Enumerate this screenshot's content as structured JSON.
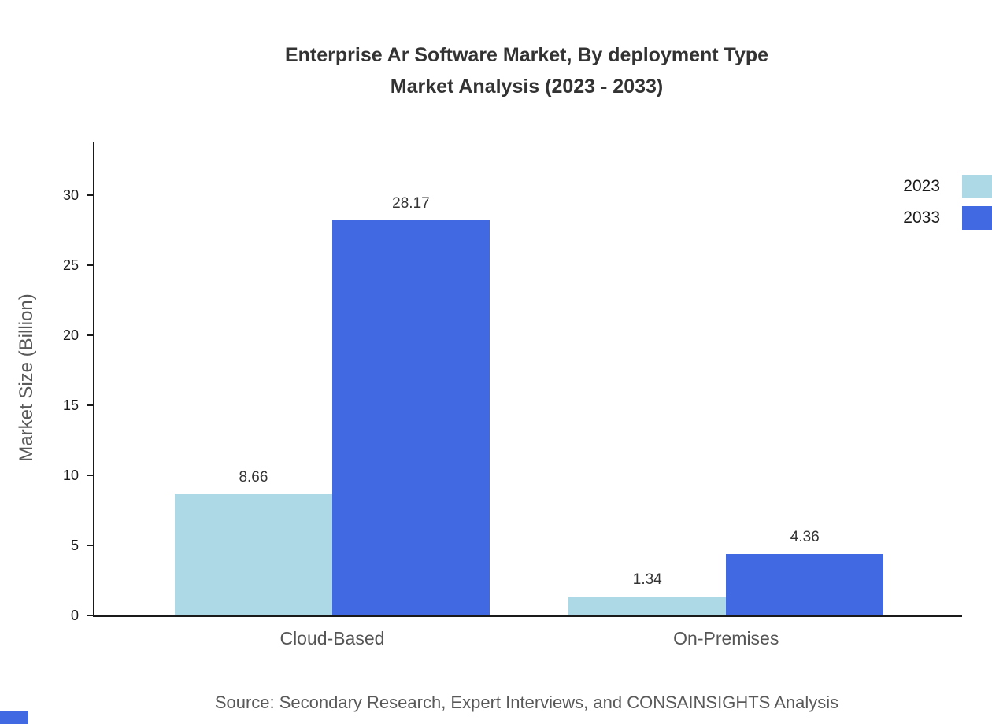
{
  "title": {
    "line1": "Enterprise Ar Software Market, By deployment Type",
    "line2": "Market Analysis (2023 - 2033)"
  },
  "source": "Source: Secondary Research, Expert Interviews, and CONSAINSIGHTS Analysis",
  "chart_data": {
    "type": "bar",
    "title": "Enterprise Ar Software Market, By deployment Type Market Analysis (2023 - 2033)",
    "categories": [
      "Cloud-Based",
      "On-Premises"
    ],
    "series": [
      {
        "name": "2023",
        "color": "#ADD8E6",
        "values": [
          8.66,
          1.34
        ]
      },
      {
        "name": "2033",
        "color": "#4169E1",
        "values": [
          28.17,
          4.36
        ]
      }
    ],
    "xlabel": "",
    "ylabel": "Market Size (Billion)",
    "yticks": [
      0,
      5,
      10,
      15,
      20,
      25,
      30
    ],
    "ylim": [
      0,
      33.8
    ],
    "grid": false,
    "legend_position": "top-right",
    "value_labels": [
      "8.66",
      "28.17",
      "1.34",
      "4.36"
    ],
    "accent_color": "#4169E1"
  }
}
